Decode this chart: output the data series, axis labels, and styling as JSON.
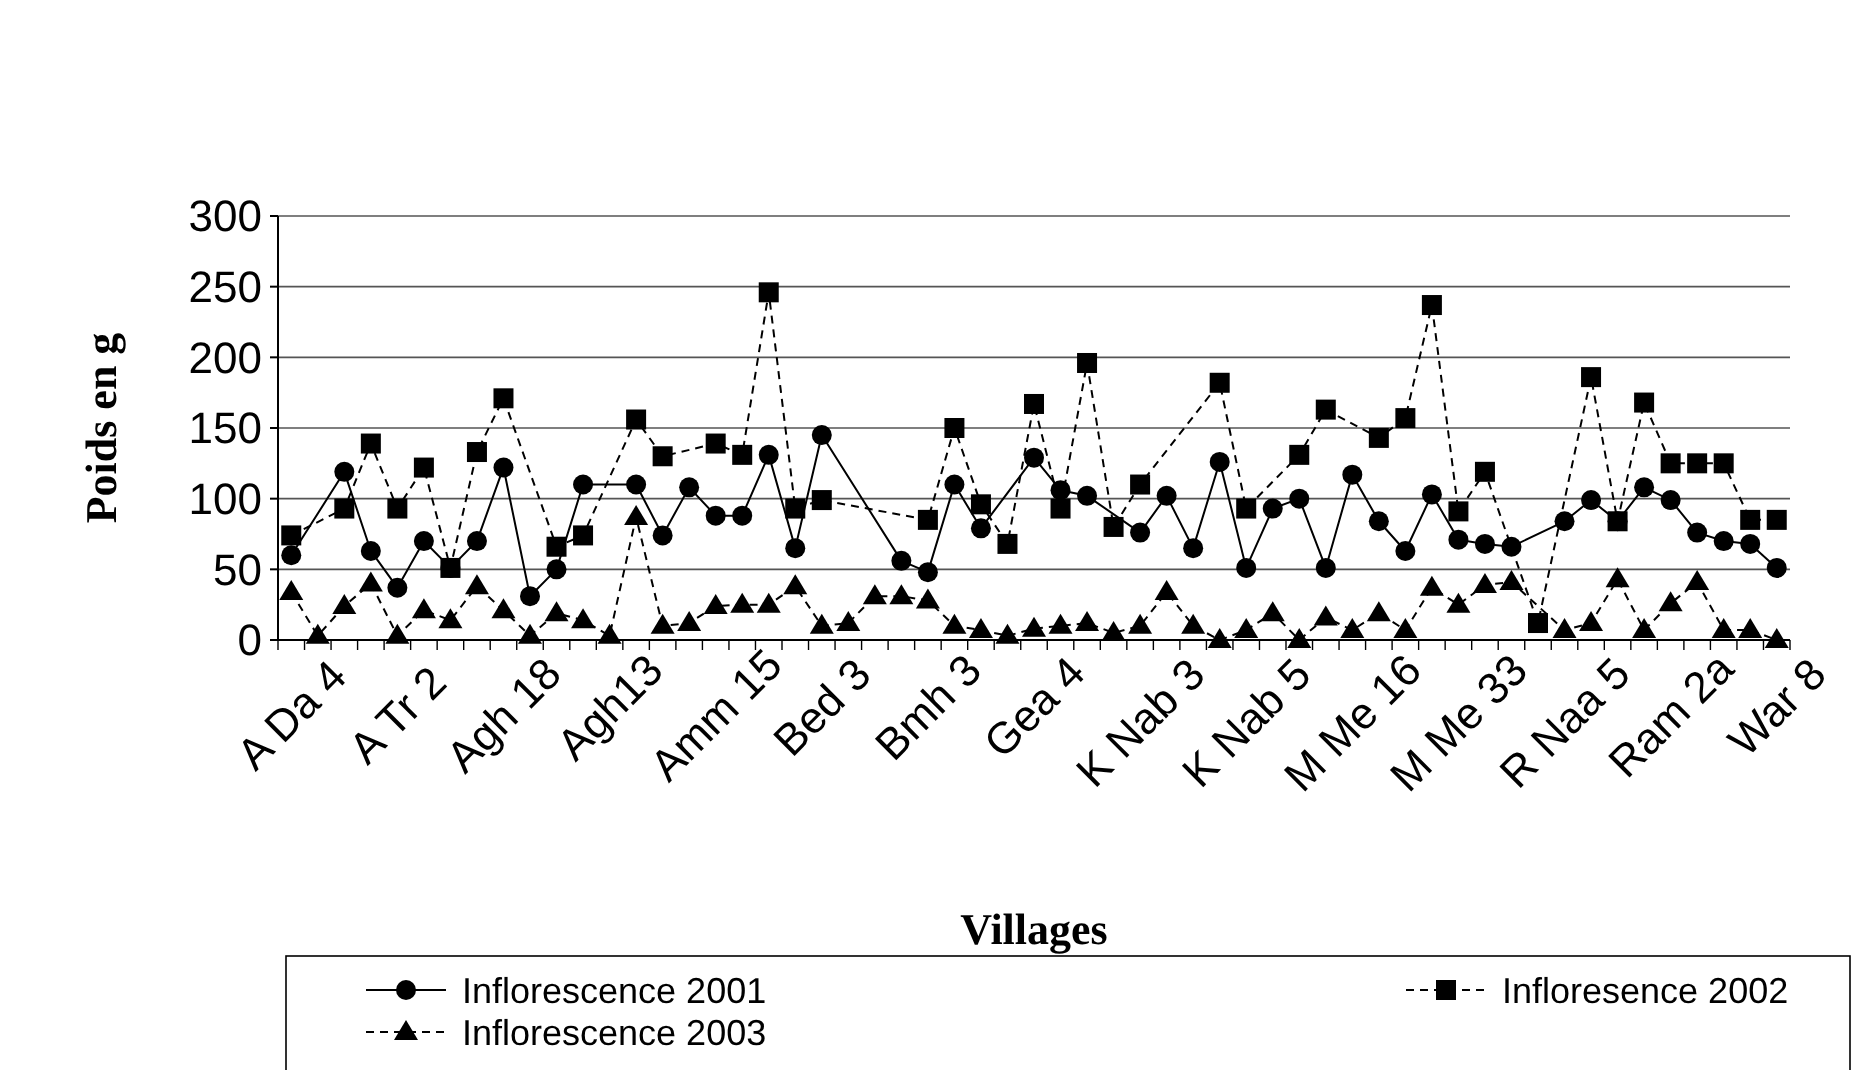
{
  "chart_data": {
    "type": "line",
    "xlabel": "Villages",
    "ylabel": "Poids en g",
    "categories": [
      "A Da 4",
      null,
      null,
      null,
      "A Tr 2",
      null,
      null,
      null,
      "Agh 18",
      null,
      null,
      null,
      "Agh13",
      null,
      null,
      null,
      "Amm 15",
      null,
      null,
      null,
      "Bed 3",
      null,
      null,
      null,
      "Bmh 3",
      null,
      null,
      null,
      "Gea 4",
      null,
      null,
      null,
      "K Nab 3",
      null,
      null,
      null,
      "K Nab 5",
      null,
      null,
      null,
      "M Me 16",
      null,
      null,
      null,
      "M Me 33",
      null,
      null,
      null,
      "R Naa 5",
      null,
      null,
      null,
      "Ram 2a",
      null,
      null,
      null,
      "War 8"
    ],
    "series": [
      {
        "name": "Inflorescence 2001",
        "color": "#000000",
        "marker": "circle",
        "line_style": "solid",
        "values": [
          60,
          null,
          119,
          63,
          37,
          70,
          51,
          70,
          122,
          31,
          50,
          110,
          null,
          110,
          74,
          108,
          88,
          88,
          131,
          65,
          145,
          null,
          null,
          56,
          48,
          110,
          79,
          null,
          129,
          106,
          102,
          null,
          76,
          102,
          65,
          126,
          51,
          93,
          100,
          51,
          117,
          84,
          63,
          103,
          71,
          68,
          66,
          null,
          84,
          99,
          84,
          108,
          99,
          76,
          70,
          68,
          51
        ]
      },
      {
        "name": "Infloresence 2002",
        "color": "#000000",
        "marker": "square",
        "line_style": "dashed",
        "values": [
          74,
          null,
          93,
          139,
          93,
          122,
          51,
          133,
          171,
          null,
          66,
          74,
          null,
          156,
          130,
          null,
          139,
          131,
          246,
          93,
          99,
          null,
          null,
          null,
          85,
          150,
          96,
          68,
          167,
          93,
          196,
          80,
          110,
          null,
          null,
          182,
          93,
          null,
          131,
          163,
          null,
          143,
          157,
          237,
          91,
          119,
          null,
          12,
          null,
          186,
          84,
          168,
          125,
          125,
          125,
          85,
          85
        ]
      },
      {
        "name": "Inflorescence 2003",
        "color": "#000000",
        "marker": "triangle",
        "line_style": "dashed",
        "values": [
          34,
          3,
          24,
          40,
          3,
          21,
          14,
          38,
          21,
          3,
          19,
          14,
          3,
          87,
          10,
          12,
          24,
          25,
          25,
          38,
          10,
          12,
          31,
          31,
          28,
          10,
          7,
          3,
          8,
          10,
          12,
          5,
          10,
          34,
          10,
          0,
          7,
          19,
          0,
          16,
          7,
          19,
          7,
          37,
          25,
          39,
          41,
          null,
          7,
          12,
          43,
          7,
          26,
          41,
          7,
          7,
          0
        ]
      }
    ],
    "ylim": [
      0,
      300
    ],
    "yticks": [
      0,
      50,
      100,
      150,
      200,
      250,
      300
    ],
    "grid": "y",
    "legend": "bottom"
  }
}
